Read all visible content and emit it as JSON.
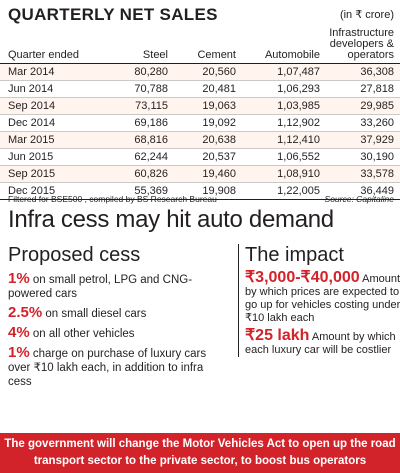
{
  "header": {
    "title": "QUARTERLY NET SALES",
    "unit": "(in ₹ crore)"
  },
  "chart_data": {
    "type": "table",
    "title": "QUARTERLY NET SALES",
    "unit": "(in ₹ crore)",
    "columns": [
      "Quarter ended",
      "Steel",
      "Cement",
      "Automobile",
      "Infrastructure developers & operators"
    ],
    "rows": [
      [
        "Mar 2014",
        "80,280",
        "20,560",
        "1,07,487",
        "36,308"
      ],
      [
        "Jun 2014",
        "70,788",
        "20,481",
        "1,06,293",
        "27,818"
      ],
      [
        "Sep 2014",
        "73,115",
        "19,063",
        "1,03,985",
        "29,985"
      ],
      [
        "Dec 2014",
        "69,186",
        "19,092",
        "1,12,902",
        "33,260"
      ],
      [
        "Mar 2015",
        "68,816",
        "20,638",
        "1,12,410",
        "37,929"
      ],
      [
        "Jun 2015",
        "62,244",
        "20,537",
        "1,06,552",
        "30,190"
      ],
      [
        "Sep 2015",
        "60,826",
        "19,460",
        "1,08,910",
        "33,578"
      ],
      [
        "Dec 2015",
        "55,369",
        "19,908",
        "1,22,005",
        "36,449"
      ]
    ]
  },
  "footnote": {
    "left": "Filtered for BSE500 , compiled by BS Research Bureau",
    "right": "Source: Capitaline"
  },
  "headline": "Infra cess may hit auto demand",
  "proposed": {
    "heading": "Proposed cess",
    "items": [
      {
        "pct": "1%",
        "text": " on small petrol, LPG and CNG-powered cars"
      },
      {
        "pct": "2.5%",
        "text": " on small diesel cars"
      },
      {
        "pct": "4%",
        "text": " on all other vehicles"
      },
      {
        "pct": "1%",
        "text": " charge on purchase of luxury cars over ₹10 lakh each, in addition to infra cess"
      }
    ]
  },
  "impact": {
    "heading": "The impact",
    "items": [
      {
        "big": "₹3,000-₹40,000",
        "text": " Amount by which prices are expected to go up for vehicles costing under ₹10 lakh each"
      },
      {
        "big": "₹25 lakh",
        "text": " Amount by which each luxury car will be costlier"
      }
    ]
  },
  "banner": "The government will change the Motor Vehicles Act to open up the road transport sector to the private sector, to boost bus operators",
  "colors": {
    "accent": "#d2232a",
    "row_tint": "#fff5ee",
    "text": "#231f20"
  }
}
